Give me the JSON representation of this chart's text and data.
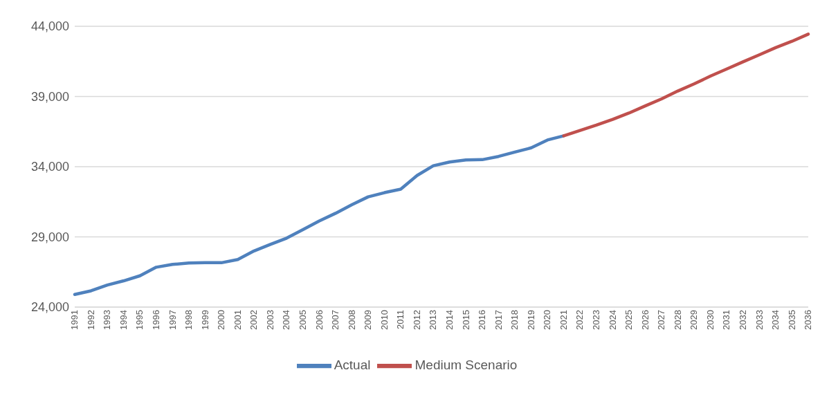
{
  "chart_data": {
    "type": "line",
    "categories": [
      "1991",
      "1992",
      "1993",
      "1994",
      "1995",
      "1996",
      "1997",
      "1998",
      "1999",
      "2000",
      "2001",
      "2002",
      "2003",
      "2004",
      "2005",
      "2006",
      "2007",
      "2008",
      "2009",
      "2010",
      "2011",
      "2012",
      "2013",
      "2014",
      "2015",
      "2016",
      "2017",
      "2018",
      "2019",
      "2020",
      "2021",
      "2022",
      "2023",
      "2024",
      "2025",
      "2026",
      "2027",
      "2028",
      "2029",
      "2030",
      "2031",
      "2032",
      "2033",
      "2034",
      "2035",
      "2036"
    ],
    "series": [
      {
        "name": "Actual",
        "color": "#4f81bd",
        "values": [
          24900,
          25160,
          25570,
          25870,
          26230,
          26840,
          27040,
          27140,
          27160,
          27160,
          27390,
          28000,
          28460,
          28910,
          29520,
          30130,
          30680,
          31290,
          31850,
          32150,
          32400,
          33370,
          34070,
          34330,
          34480,
          34500,
          34730,
          35040,
          35340,
          35900,
          36200,
          null,
          null,
          null,
          null,
          null,
          null,
          null,
          null,
          null,
          null,
          null,
          null,
          null,
          null,
          null
        ]
      },
      {
        "name": "Medium Scenario",
        "color": "#c0504d",
        "values": [
          null,
          null,
          null,
          null,
          null,
          null,
          null,
          null,
          null,
          null,
          null,
          null,
          null,
          null,
          null,
          null,
          null,
          null,
          null,
          null,
          null,
          null,
          null,
          null,
          null,
          null,
          null,
          null,
          null,
          null,
          36200,
          36580,
          36960,
          37370,
          37820,
          38330,
          38830,
          39390,
          39900,
          40450,
          40960,
          41470,
          41970,
          42480,
          42930,
          43440
        ]
      }
    ],
    "ylim": [
      24000,
      44000
    ],
    "yticks": [
      {
        "value": 24000,
        "label": "24,000"
      },
      {
        "value": 29000,
        "label": "29,000"
      },
      {
        "value": 34000,
        "label": "34,000"
      },
      {
        "value": 39000,
        "label": "39,000"
      },
      {
        "value": 44000,
        "label": "44,000"
      }
    ],
    "grid": "y",
    "legend": "bottom",
    "marker": "none",
    "line_style": "solid"
  }
}
